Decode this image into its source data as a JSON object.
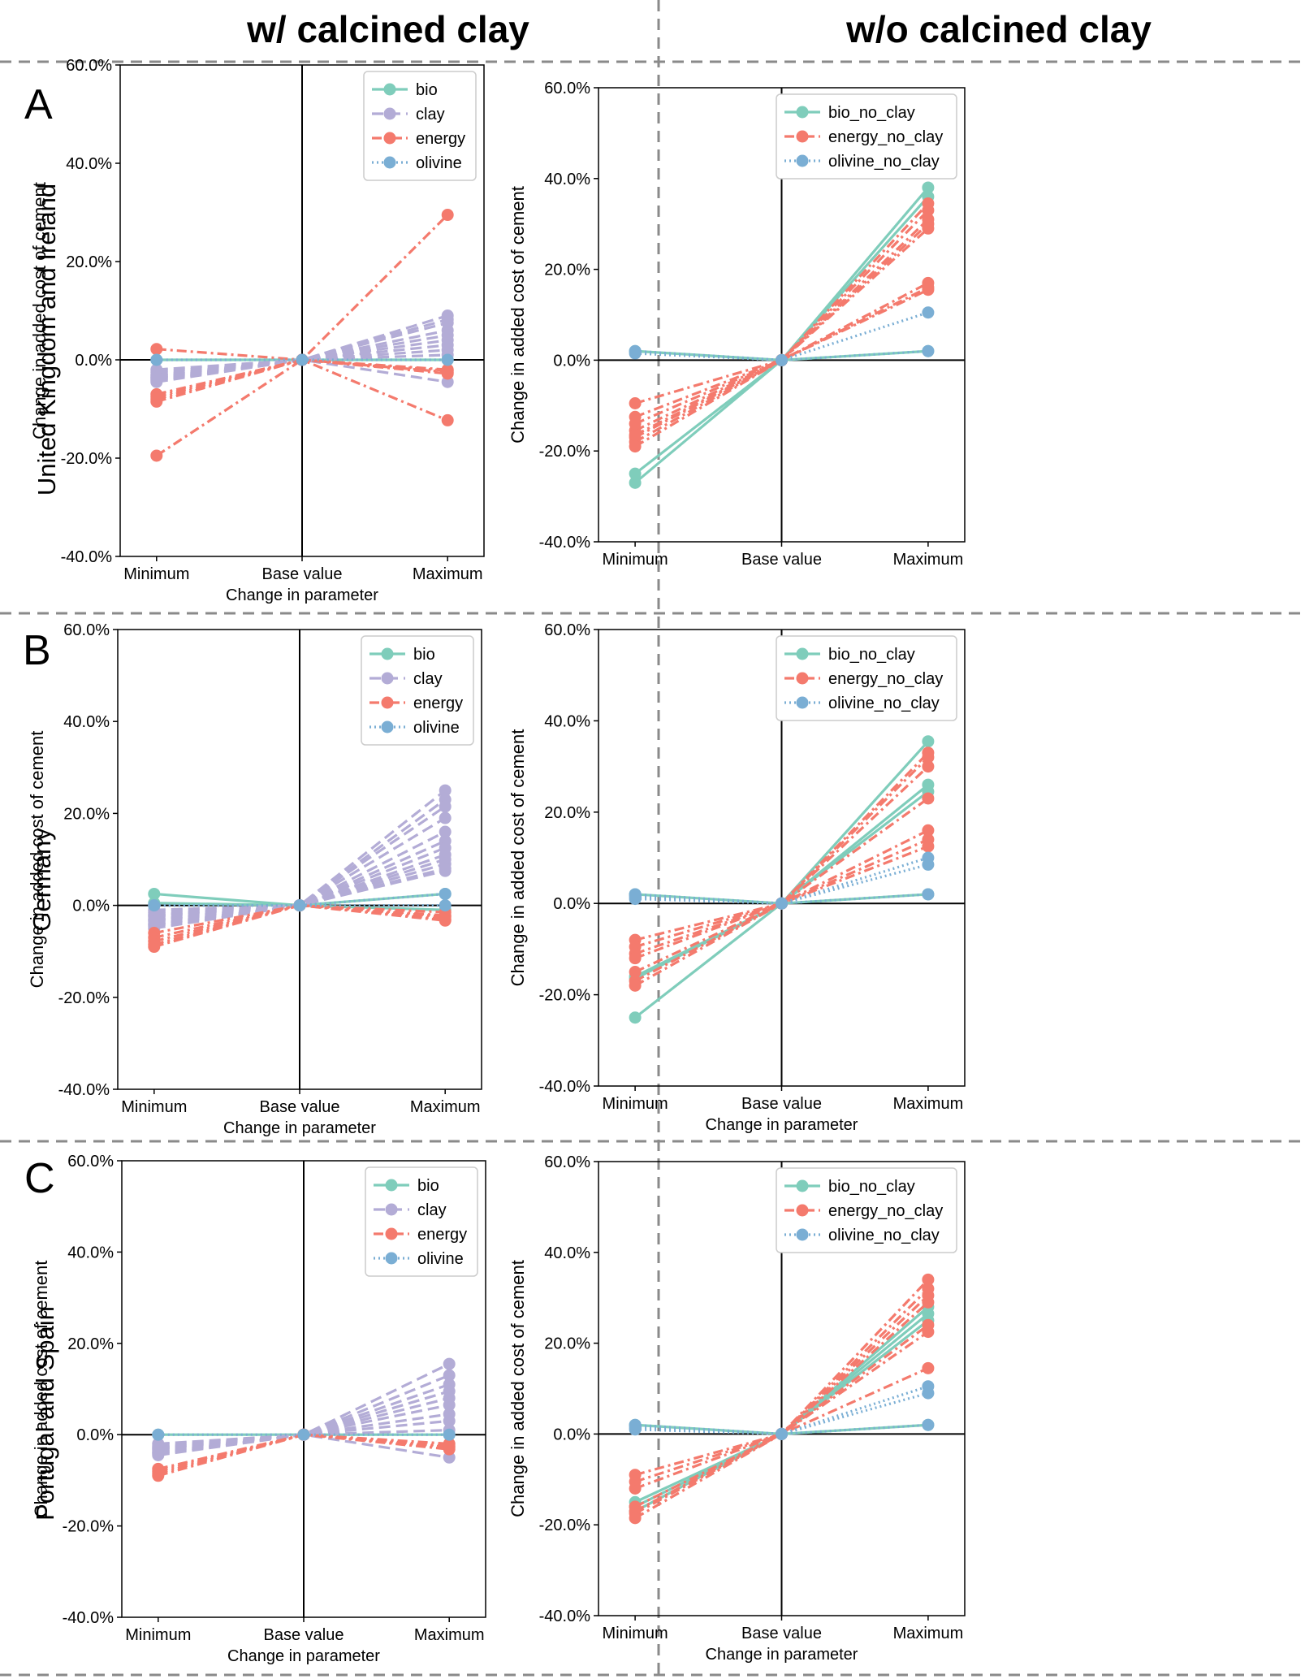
{
  "columns": [
    "w/ calcined clay",
    "w/o calcined clay"
  ],
  "rows": [
    {
      "letter": "A",
      "region": "United Kingdom and Ireland"
    },
    {
      "letter": "B",
      "region": "Germany"
    },
    {
      "letter": "C",
      "region": "Portugal and Spain"
    }
  ],
  "colors": {
    "bio": "#7fcdbb",
    "clay": "#b3acd6",
    "energy": "#f47a6d",
    "olivine": "#7aaed4"
  },
  "chart_data": [
    {
      "type": "line",
      "panel": "A-with-clay",
      "categories": [
        "Minimum",
        "Base value",
        "Maximum"
      ],
      "xlabel": "Change in parameter",
      "ylabel": "Change in added cost of cement",
      "ylim": [
        -40,
        60
      ],
      "yticks": [
        "-40.0%",
        "-20.0%",
        "0.0%",
        "20.0%",
        "40.0%",
        "60.0%"
      ],
      "legend": [
        "bio",
        "clay",
        "energy",
        "olivine"
      ],
      "legend_position": "top-right",
      "series": [
        {
          "name": "bio",
          "lines": [
            [
              0,
              0,
              0
            ]
          ]
        },
        {
          "name": "clay",
          "lines": [
            [
              -4.5,
              0,
              9
            ],
            [
              -4,
              0,
              7.5
            ],
            [
              -3.8,
              0,
              6
            ],
            [
              -3.5,
              0,
              5
            ],
            [
              -3.2,
              0,
              4
            ],
            [
              -4.2,
              0,
              3
            ],
            [
              -3,
              0,
              2
            ],
            [
              -2.5,
              0,
              1
            ],
            [
              -2,
              0,
              -4.5
            ],
            [
              -3.6,
              0,
              8.2
            ]
          ]
        },
        {
          "name": "energy",
          "lines": [
            [
              2.2,
              0,
              -2.5
            ],
            [
              -19.5,
              0,
              29.5
            ],
            [
              -7.5,
              0,
              -12.3
            ],
            [
              -8.5,
              0,
              -2.8
            ],
            [
              -7,
              0,
              -2
            ],
            [
              -8,
              0,
              -2.2
            ]
          ]
        },
        {
          "name": "olivine",
          "lines": [
            [
              0,
              0,
              0
            ]
          ]
        }
      ]
    },
    {
      "type": "line",
      "panel": "A-without-clay",
      "categories": [
        "Minimum",
        "Base value",
        "Maximum"
      ],
      "xlabel": "",
      "ylabel": "Change in added cost of cement",
      "ylim": [
        -40,
        60
      ],
      "yticks": [
        "-40.0%",
        "-20.0%",
        "0.0%",
        "20.0%",
        "40.0%",
        "60.0%"
      ],
      "legend": [
        "bio_no_clay",
        "energy_no_clay",
        "olivine_no_clay"
      ],
      "legend_position": "top-right",
      "series": [
        {
          "name": "bio_no_clay",
          "lines": [
            [
              -27,
              0,
              38
            ],
            [
              -25,
              0,
              36
            ],
            [
              2,
              0,
              2
            ]
          ]
        },
        {
          "name": "energy_no_clay",
          "lines": [
            [
              -9.5,
              0,
              17
            ],
            [
              -12.5,
              0,
              15.5
            ],
            [
              -15.5,
              0,
              29
            ],
            [
              -17,
              0,
              31
            ],
            [
              -18,
              0,
              33
            ],
            [
              -19,
              0,
              34.5
            ],
            [
              -16.5,
              0,
              30
            ],
            [
              -14,
              0,
              16
            ]
          ]
        },
        {
          "name": "olivine_no_clay",
          "lines": [
            [
              1.5,
              0,
              10.5
            ],
            [
              2,
              0,
              2
            ]
          ]
        }
      ]
    },
    {
      "type": "line",
      "panel": "B-with-clay",
      "categories": [
        "Minimum",
        "Base value",
        "Maximum"
      ],
      "xlabel": "Change in parameter",
      "ylabel": "Change in added cost of cement",
      "ylim": [
        -40,
        60
      ],
      "yticks": [
        "-40.0%",
        "-20.0%",
        "0.0%",
        "20.0%",
        "40.0%",
        "60.0%"
      ],
      "legend": [
        "bio",
        "clay",
        "energy",
        "olivine"
      ],
      "legend_position": "top-right",
      "series": [
        {
          "name": "bio",
          "lines": [
            [
              2.5,
              0,
              2.5
            ],
            [
              0.5,
              0,
              -1
            ]
          ]
        },
        {
          "name": "clay",
          "lines": [
            [
              -5,
              0,
              25
            ],
            [
              -4.5,
              0,
              23
            ],
            [
              -4,
              0,
              21.5
            ],
            [
              -3.5,
              0,
              19
            ],
            [
              -3,
              0,
              16
            ],
            [
              -2.5,
              0,
              14
            ],
            [
              -2,
              0,
              12.5
            ],
            [
              -4.2,
              0,
              11
            ],
            [
              -3.2,
              0,
              10
            ],
            [
              -2.2,
              0,
              9
            ],
            [
              -1.5,
              0,
              8
            ],
            [
              -1,
              0,
              7.5
            ]
          ]
        },
        {
          "name": "energy",
          "lines": [
            [
              -6,
              0,
              -1.5
            ],
            [
              -7,
              0,
              -2.2
            ],
            [
              -7.8,
              0,
              -2.5
            ],
            [
              -8.5,
              0,
              -3
            ],
            [
              -9,
              0,
              -3.3
            ]
          ]
        },
        {
          "name": "olivine",
          "lines": [
            [
              0,
              0,
              2.5
            ],
            [
              0,
              0,
              0
            ]
          ]
        }
      ]
    },
    {
      "type": "line",
      "panel": "B-without-clay",
      "categories": [
        "Minimum",
        "Base value",
        "Maximum"
      ],
      "xlabel": "Change in parameter",
      "ylabel": "Change in added cost of cement",
      "ylim": [
        -40,
        60
      ],
      "yticks": [
        "-40.0%",
        "-20.0%",
        "0.0%",
        "20.0%",
        "40.0%",
        "60.0%"
      ],
      "legend": [
        "bio_no_clay",
        "energy_no_clay",
        "olivine_no_clay"
      ],
      "legend_position": "top-right",
      "series": [
        {
          "name": "bio_no_clay",
          "lines": [
            [
              -25,
              0,
              35.5
            ],
            [
              -16.5,
              0,
              26
            ],
            [
              -16,
              0,
              24.5
            ],
            [
              2,
              0,
              2
            ]
          ]
        },
        {
          "name": "energy_no_clay",
          "lines": [
            [
              -8,
              0,
              16
            ],
            [
              -9.5,
              0,
              14
            ],
            [
              -11,
              0,
              12.5
            ],
            [
              -12,
              0,
              23
            ],
            [
              -15,
              0,
              30
            ],
            [
              -17,
              0,
              32
            ],
            [
              -18,
              0,
              33
            ]
          ]
        },
        {
          "name": "olivine_no_clay",
          "lines": [
            [
              1.5,
              0,
              10
            ],
            [
              1,
              0,
              8.5
            ],
            [
              2,
              0,
              2
            ]
          ]
        }
      ]
    },
    {
      "type": "line",
      "panel": "C-with-clay",
      "categories": [
        "Minimum",
        "Base value",
        "Maximum"
      ],
      "xlabel": "Change in parameter",
      "ylabel": "Change in added cost of cement",
      "ylim": [
        -40,
        60
      ],
      "yticks": [
        "-40.0%",
        "-20.0%",
        "0.0%",
        "20.0%",
        "40.0%",
        "60.0%"
      ],
      "legend": [
        "bio",
        "clay",
        "energy",
        "olivine"
      ],
      "legend_position": "top-right",
      "series": [
        {
          "name": "bio",
          "lines": [
            [
              0,
              0,
              0
            ]
          ]
        },
        {
          "name": "clay",
          "lines": [
            [
              -4.5,
              0,
              15.5
            ],
            [
              -4.2,
              0,
              13
            ],
            [
              -4,
              0,
              11
            ],
            [
              -3.8,
              0,
              9.5
            ],
            [
              -3.5,
              0,
              8
            ],
            [
              -3.2,
              0,
              6.5
            ],
            [
              -3,
              0,
              4.5
            ],
            [
              -2.8,
              0,
              3
            ],
            [
              -2.5,
              0,
              1
            ],
            [
              -2,
              0,
              -5
            ]
          ]
        },
        {
          "name": "energy",
          "lines": [
            [
              -7.5,
              0,
              -2
            ],
            [
              -8,
              0,
              -2.5
            ],
            [
              -8.5,
              0,
              -2.8
            ],
            [
              -9,
              0,
              -3.2
            ]
          ]
        },
        {
          "name": "olivine",
          "lines": [
            [
              0,
              0,
              0
            ]
          ]
        }
      ]
    },
    {
      "type": "line",
      "panel": "C-without-clay",
      "categories": [
        "Minimum",
        "Base value",
        "Maximum"
      ],
      "xlabel": "Change in parameter",
      "ylabel": "Change in added cost of cement",
      "ylim": [
        -40,
        60
      ],
      "yticks": [
        "-40.0%",
        "-20.0%",
        "0.0%",
        "20.0%",
        "40.0%",
        "60.0%"
      ],
      "legend": [
        "bio_no_clay",
        "energy_no_clay",
        "olivine_no_clay"
      ],
      "legend_position": "top-right",
      "series": [
        {
          "name": "bio_no_clay",
          "lines": [
            [
              -17,
              0,
              28
            ],
            [
              -16,
              0,
              26.5
            ],
            [
              -15,
              0,
              25
            ],
            [
              2,
              0,
              2
            ]
          ]
        },
        {
          "name": "energy_no_clay",
          "lines": [
            [
              -9,
              0,
              14.5
            ],
            [
              -10.5,
              0,
              22.5
            ],
            [
              -12,
              0,
              24
            ],
            [
              -16,
              0,
              29
            ],
            [
              -17,
              0,
              30.5
            ],
            [
              -17.5,
              0,
              32
            ],
            [
              -18.5,
              0,
              34
            ]
          ]
        },
        {
          "name": "olivine_no_clay",
          "lines": [
            [
              1.5,
              0,
              10.5
            ],
            [
              1,
              0,
              9
            ],
            [
              2,
              0,
              2
            ]
          ]
        }
      ]
    }
  ]
}
